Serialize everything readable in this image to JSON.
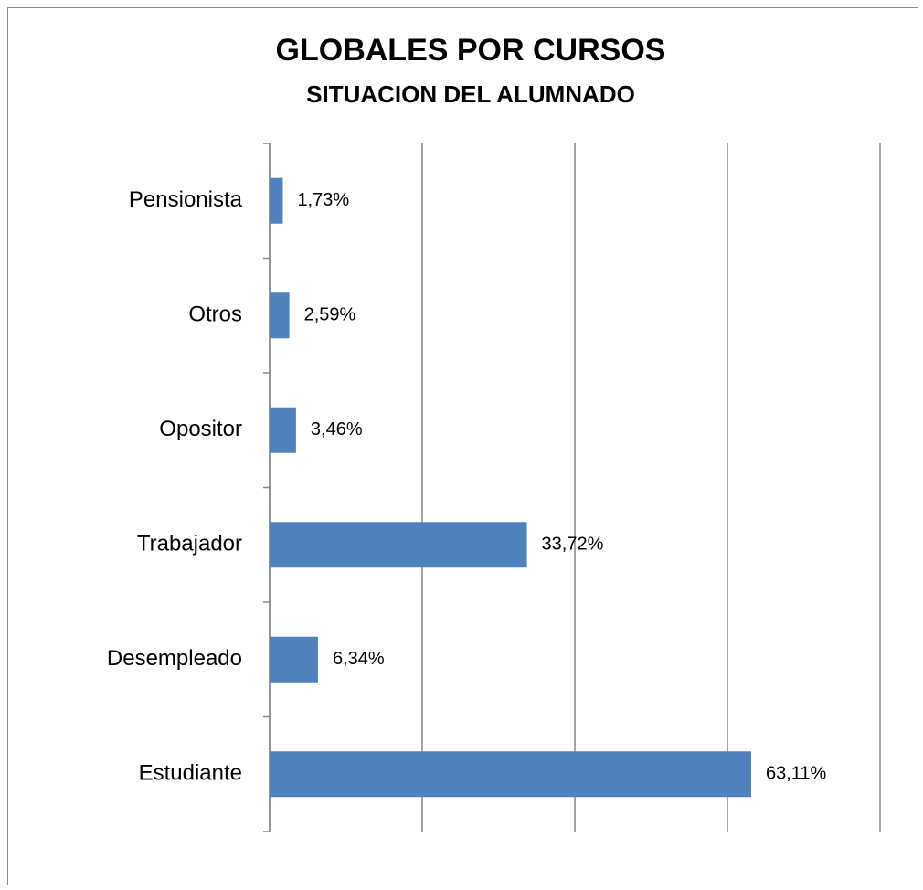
{
  "chart_data": {
    "type": "bar",
    "orientation": "horizontal",
    "title": "GLOBALES POR CURSOS",
    "subtitle": "SITUACION DEL ALUMNADO",
    "categories": [
      "Pensionista",
      "Otros",
      "Opositor",
      "Trabajador",
      "Desempleado",
      "Estudiante"
    ],
    "values": [
      1.73,
      2.59,
      3.46,
      33.72,
      6.34,
      63.11
    ],
    "value_labels": [
      "1,73%",
      "2,59%",
      "3,46%",
      "33,72%",
      "6,34%",
      "63,11%"
    ],
    "color": "#4f81bd",
    "xlim": [
      0,
      80
    ],
    "xticks": [
      0,
      20,
      40,
      60,
      80
    ],
    "grid": true
  }
}
